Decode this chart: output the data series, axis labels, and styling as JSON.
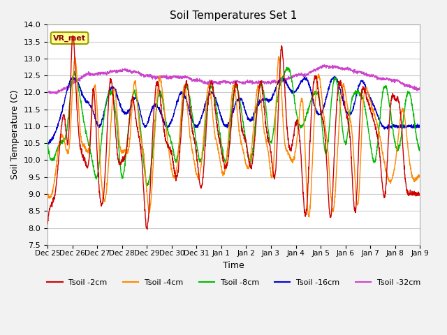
{
  "title": "Soil Temperatures Set 1",
  "xlabel": "Time",
  "ylabel": "Soil Temperature (C)",
  "ylim": [
    7.5,
    14.0
  ],
  "yticks": [
    7.5,
    8.0,
    8.5,
    9.0,
    9.5,
    10.0,
    10.5,
    11.0,
    11.5,
    12.0,
    12.5,
    13.0,
    13.5,
    14.0
  ],
  "colors": {
    "Tsoil -2cm": "#cc0000",
    "Tsoil -4cm": "#ff8800",
    "Tsoil -8cm": "#00bb00",
    "Tsoil -16cm": "#0000cc",
    "Tsoil -32cm": "#cc44cc"
  },
  "annotation": "VR_met",
  "bg_color": "#f2f2f2",
  "plot_bg": "#ffffff",
  "grid_color": "#cccccc",
  "xtick_labels": [
    "Dec 25",
    "Dec 26",
    "Dec 27",
    "Dec 28",
    "Dec 29",
    "Dec 30",
    "Dec 31",
    "Jan 1",
    "Jan 2",
    "Jan 3",
    "Jan 4",
    "Jan 5",
    "Jan 6",
    "Jan 7",
    "Jan 8",
    "Jan 9"
  ],
  "xtick_positions": [
    0,
    1,
    2,
    3,
    4,
    5,
    6,
    7,
    8,
    9,
    10,
    11,
    12,
    13,
    14,
    15
  ],
  "T2_knots_t": [
    0,
    0.1,
    0.3,
    0.5,
    0.7,
    0.85,
    1.0,
    1.15,
    1.3,
    1.5,
    1.7,
    1.85,
    2.0,
    2.2,
    2.35,
    2.5,
    2.7,
    2.85,
    3.0,
    3.2,
    3.4,
    3.6,
    3.8,
    4.0,
    4.2,
    4.4,
    4.6,
    4.8,
    5.0,
    5.2,
    5.4,
    5.6,
    5.8,
    6.0,
    6.2,
    6.4,
    6.6,
    6.8,
    7.0,
    7.2,
    7.4,
    7.6,
    7.8,
    8.0,
    8.2,
    8.4,
    8.6,
    8.8,
    9.0,
    9.2,
    9.4,
    9.6,
    9.8,
    10.0,
    10.2,
    10.4,
    10.6,
    10.8,
    11.0,
    11.2,
    11.4,
    11.6,
    11.8,
    12.0,
    12.2,
    12.4,
    12.6,
    12.8,
    13.0,
    13.2,
    13.4,
    13.6,
    13.8,
    14.0,
    14.2,
    14.4,
    14.6,
    14.8,
    15.0
  ],
  "T2_knots_v": [
    8.1,
    8.6,
    9.0,
    10.5,
    11.2,
    10.7,
    13.6,
    12.1,
    10.5,
    10.0,
    10.3,
    12.1,
    10.2,
    8.7,
    10.0,
    12.2,
    11.3,
    10.0,
    10.0,
    10.4,
    11.8,
    11.0,
    10.0,
    8.0,
    10.2,
    12.3,
    11.4,
    10.5,
    10.2,
    9.5,
    11.0,
    12.3,
    11.1,
    10.2,
    9.2,
    11.0,
    12.3,
    11.2,
    10.3,
    9.8,
    11.0,
    12.3,
    11.1,
    10.5,
    9.8,
    11.1,
    12.3,
    11.0,
    10.2,
    9.8,
    13.2,
    11.5,
    10.3,
    11.1,
    10.2,
    8.4,
    11.0,
    12.5,
    11.5,
    10.5,
    8.3,
    11.0,
    12.3,
    11.5,
    10.5,
    8.5,
    11.5,
    12.0,
    11.5,
    11.0,
    10.0,
    9.0,
    11.5,
    11.8,
    11.5,
    9.5,
    9.0,
    9.0,
    9.0
  ],
  "T4_knots_t": [
    0,
    0.1,
    0.3,
    0.5,
    0.7,
    0.9,
    1.1,
    1.3,
    1.5,
    1.7,
    1.9,
    2.1,
    2.3,
    2.5,
    2.7,
    2.9,
    3.1,
    3.3,
    3.5,
    3.7,
    3.9,
    4.1,
    4.3,
    4.5,
    4.7,
    4.9,
    5.1,
    5.3,
    5.5,
    5.7,
    5.9,
    6.1,
    6.3,
    6.5,
    6.7,
    6.9,
    7.1,
    7.3,
    7.5,
    7.7,
    7.9,
    8.1,
    8.3,
    8.5,
    8.7,
    8.9,
    9.1,
    9.3,
    9.5,
    9.7,
    9.9,
    10.1,
    10.3,
    10.5,
    10.7,
    10.9,
    11.1,
    11.3,
    11.5,
    11.7,
    11.9,
    12.1,
    12.3,
    12.5,
    12.7,
    12.9,
    13.1,
    13.3,
    13.5,
    13.7,
    13.9,
    14.1,
    14.3,
    14.5,
    14.7,
    14.9,
    15.0
  ],
  "T4_knots_v": [
    9.0,
    8.9,
    9.5,
    10.6,
    10.5,
    10.6,
    13.0,
    11.0,
    10.4,
    10.5,
    12.2,
    10.2,
    8.8,
    10.4,
    12.1,
    10.5,
    10.3,
    10.5,
    12.3,
    11.0,
    10.0,
    8.5,
    10.5,
    12.4,
    11.5,
    10.2,
    9.5,
    10.5,
    12.2,
    11.0,
    10.0,
    9.5,
    10.8,
    12.2,
    11.0,
    10.2,
    9.6,
    10.8,
    12.2,
    11.0,
    10.2,
    9.8,
    11.0,
    12.2,
    11.0,
    10.2,
    9.8,
    13.0,
    11.0,
    10.2,
    10.0,
    11.0,
    11.5,
    8.4,
    10.5,
    12.5,
    11.5,
    10.2,
    8.5,
    10.5,
    12.2,
    11.5,
    10.5,
    8.7,
    11.5,
    12.0,
    11.5,
    11.0,
    10.2,
    9.5,
    9.5,
    10.5,
    11.5,
    10.5,
    9.5,
    9.5,
    9.5
  ],
  "T8_knots_t": [
    0,
    0.2,
    0.5,
    0.8,
    1.0,
    1.2,
    1.5,
    1.8,
    2.0,
    2.2,
    2.5,
    2.8,
    3.0,
    3.2,
    3.5,
    3.8,
    4.0,
    4.2,
    4.5,
    4.8,
    5.0,
    5.2,
    5.5,
    5.8,
    6.0,
    6.2,
    6.5,
    6.8,
    7.0,
    7.2,
    7.5,
    7.8,
    8.0,
    8.2,
    8.5,
    8.8,
    9.0,
    9.2,
    9.5,
    9.8,
    10.0,
    10.2,
    10.5,
    10.8,
    11.0,
    11.2,
    11.5,
    11.8,
    12.0,
    12.2,
    12.5,
    12.8,
    13.0,
    13.2,
    13.5,
    13.8,
    14.0,
    14.2,
    14.5,
    14.8,
    15.0
  ],
  "T8_knots_v": [
    10.5,
    10.0,
    10.5,
    11.0,
    12.4,
    12.3,
    11.0,
    10.0,
    9.5,
    10.8,
    12.0,
    11.0,
    9.5,
    10.5,
    12.0,
    10.5,
    9.3,
    10.0,
    12.0,
    11.0,
    10.5,
    10.0,
    12.0,
    11.5,
    10.5,
    10.0,
    12.0,
    11.5,
    10.5,
    10.0,
    12.0,
    11.5,
    10.5,
    10.0,
    12.0,
    11.5,
    10.5,
    11.5,
    12.5,
    12.5,
    11.5,
    11.0,
    11.5,
    12.0,
    11.5,
    10.2,
    12.2,
    11.5,
    10.5,
    11.5,
    12.0,
    11.5,
    10.5,
    10.0,
    12.0,
    11.5,
    10.5,
    10.5,
    12.0,
    11.0,
    10.3
  ],
  "T16_knots_t": [
    0,
    0.3,
    0.6,
    0.9,
    1.2,
    1.5,
    1.8,
    2.1,
    2.4,
    2.7,
    3.0,
    3.3,
    3.6,
    3.9,
    4.2,
    4.5,
    4.8,
    5.1,
    5.4,
    5.7,
    6.0,
    6.3,
    6.6,
    6.9,
    7.2,
    7.5,
    7.8,
    8.1,
    8.4,
    8.7,
    9.0,
    9.3,
    9.6,
    9.9,
    10.2,
    10.5,
    10.8,
    11.1,
    11.4,
    11.7,
    12.0,
    12.3,
    12.6,
    12.9,
    13.2,
    13.5,
    13.8,
    14.1,
    14.4,
    14.7,
    15.0
  ],
  "T16_knots_v": [
    10.5,
    10.8,
    11.5,
    12.3,
    12.3,
    11.8,
    11.5,
    11.0,
    11.8,
    12.1,
    11.5,
    11.5,
    11.8,
    11.0,
    11.5,
    11.5,
    11.0,
    11.4,
    12.0,
    11.5,
    11.0,
    11.5,
    12.0,
    11.5,
    11.0,
    11.5,
    11.8,
    11.2,
    11.5,
    11.8,
    11.8,
    12.3,
    12.3,
    12.0,
    12.3,
    12.3,
    11.5,
    11.5,
    12.3,
    12.3,
    11.5,
    11.5,
    12.3,
    12.0,
    11.5,
    11.0,
    11.0,
    11.0,
    11.0,
    11.0,
    11.0
  ],
  "T32_knots_t": [
    0,
    0.5,
    1.0,
    1.5,
    2.0,
    2.5,
    3.0,
    3.5,
    4.0,
    4.5,
    5.0,
    5.5,
    6.0,
    6.5,
    7.0,
    7.5,
    8.0,
    8.5,
    9.0,
    9.5,
    10.0,
    10.5,
    11.0,
    11.5,
    12.0,
    12.5,
    13.0,
    13.5,
    14.0,
    14.5,
    15.0
  ],
  "T32_knots_v": [
    12.0,
    12.05,
    12.25,
    12.5,
    12.55,
    12.6,
    12.65,
    12.6,
    12.5,
    12.45,
    12.45,
    12.45,
    12.35,
    12.3,
    12.3,
    12.3,
    12.3,
    12.3,
    12.3,
    12.35,
    12.5,
    12.55,
    12.75,
    12.75,
    12.7,
    12.6,
    12.5,
    12.4,
    12.35,
    12.2,
    12.1
  ]
}
